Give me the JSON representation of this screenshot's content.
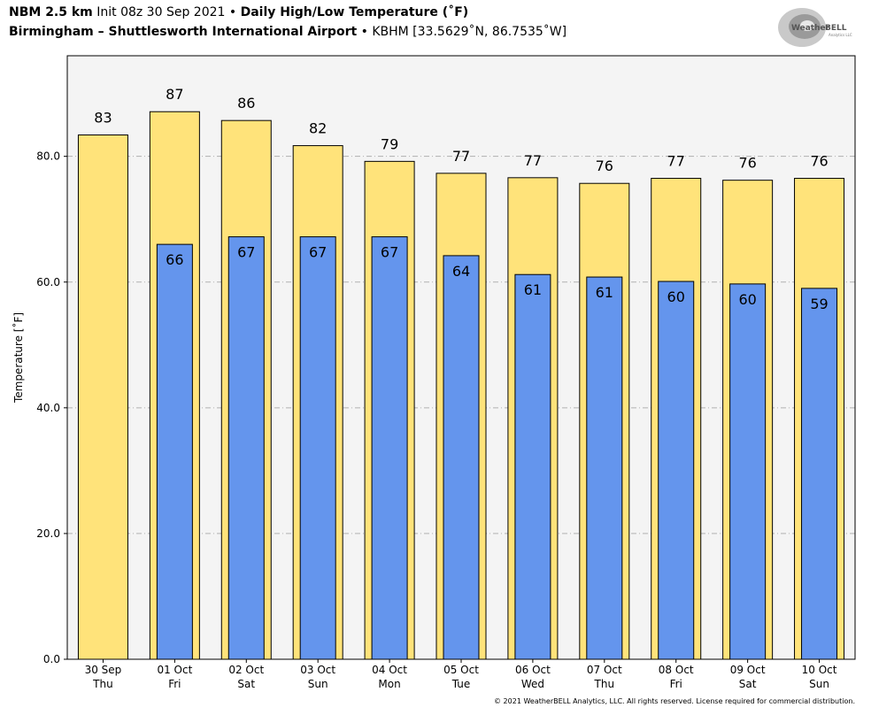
{
  "header": {
    "model": "NBM 2.5 km",
    "init": "Init 08z 30 Sep 2021",
    "sep1": "•",
    "title": "Daily High/Low Temperature (˚F)",
    "location": "Birmingham – Shuttlesworth International Airport",
    "sep2": "•",
    "station": "KBHM [33.5629˚N, 86.7535˚W]"
  },
  "logo": {
    "text_a": "Weather",
    "text_b": "BELL",
    "sub": "Analytics LLC"
  },
  "copyright": "© 2021 WeatherBELL Analytics, LLC. All rights reserved. License required for commercial distribution.",
  "colors": {
    "high": "#FFE37A",
    "low": "#6495ED",
    "plot_bg": "#F4F4F4",
    "grid": "#B0B0B0"
  },
  "chart_data": {
    "type": "bar",
    "ylabel": "Temperature [˚F]",
    "ylim": [
      0,
      96
    ],
    "yticks": [
      "0.0",
      "20.0",
      "40.0",
      "60.0",
      "80.0"
    ],
    "ytick_values": [
      0,
      20,
      40,
      60,
      80
    ],
    "grid": true,
    "categories": [
      {
        "date": "30 Sep",
        "day": "Thu"
      },
      {
        "date": "01 Oct",
        "day": "Fri"
      },
      {
        "date": "02 Oct",
        "day": "Sat"
      },
      {
        "date": "03 Oct",
        "day": "Sun"
      },
      {
        "date": "04 Oct",
        "day": "Mon"
      },
      {
        "date": "05 Oct",
        "day": "Tue"
      },
      {
        "date": "06 Oct",
        "day": "Wed"
      },
      {
        "date": "07 Oct",
        "day": "Thu"
      },
      {
        "date": "08 Oct",
        "day": "Fri"
      },
      {
        "date": "09 Oct",
        "day": "Sat"
      },
      {
        "date": "10 Oct",
        "day": "Sun"
      }
    ],
    "series": [
      {
        "values": [
          83.4,
          87.1,
          85.7,
          81.7,
          79.2,
          77.3,
          76.6,
          75.7,
          76.5,
          76.2,
          76.5
        ],
        "labels": [
          "83",
          "87",
          "86",
          "82",
          "79",
          "77",
          "77",
          "76",
          "77",
          "76",
          "76"
        ]
      },
      {
        "values": [
          null,
          66.0,
          67.2,
          67.2,
          67.2,
          64.2,
          61.2,
          60.8,
          60.1,
          59.7,
          59.0
        ],
        "labels": [
          "",
          "66",
          "67",
          "67",
          "67",
          "64",
          "61",
          "61",
          "60",
          "60",
          "59"
        ]
      }
    ]
  }
}
